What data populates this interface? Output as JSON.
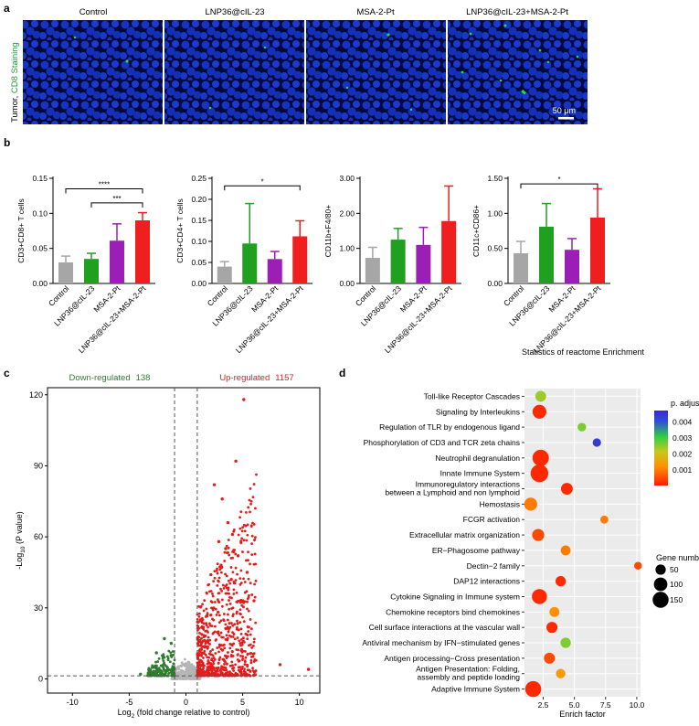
{
  "panels": {
    "a": "a",
    "b": "b",
    "c": "c",
    "d": "d"
  },
  "panel_a": {
    "row_label_prefix": "Tumor, ",
    "row_label_colored": "CD8 Staining",
    "headers": [
      "Control",
      "LNP36@cIL-23",
      "MSA-2-Pt",
      "LNP36@cIL-23+MSA-2-Pt"
    ],
    "scale_bar": "50 μm",
    "colors": {
      "nuclei": "#1433c8",
      "cd8": "#22dd44",
      "background": "#020a3a",
      "label_green": "#1a9a3a"
    }
  },
  "chart_data": [
    {
      "type": "bar",
      "ylabel": "CD3+CD8+ T cells",
      "categories": [
        "Control",
        "LNP36@cIL-23",
        "MSA-2-Pt",
        "LNP36@cIL-23+MSA-2-Pt"
      ],
      "values": [
        0.03,
        0.035,
        0.061,
        0.09
      ],
      "errors": [
        0.009,
        0.008,
        0.024,
        0.011
      ],
      "colors": [
        "#a6a6a6",
        "#20a020",
        "#9b1fb5",
        "#ef1f1f"
      ],
      "ylim": [
        0,
        0.15
      ],
      "yticks": [
        "0.00",
        "0.05",
        "0.10",
        "0.15"
      ],
      "tick_values": [
        0,
        0.05,
        0.1,
        0.15
      ],
      "significance": [
        {
          "from": 0,
          "to": 3,
          "label": "****",
          "y": 0.135
        },
        {
          "from": 1,
          "to": 3,
          "label": "***",
          "y": 0.115
        }
      ]
    },
    {
      "type": "bar",
      "ylabel": "CD3+CD4+ T cells",
      "categories": [
        "Control",
        "LNP36@cIL-23",
        "MSA-2-Pt",
        "LNP36@cIL-23+MSA-2-Pt"
      ],
      "values": [
        0.04,
        0.095,
        0.058,
        0.112
      ],
      "errors": [
        0.012,
        0.095,
        0.018,
        0.037
      ],
      "colors": [
        "#a6a6a6",
        "#20a020",
        "#9b1fb5",
        "#ef1f1f"
      ],
      "ylim": [
        0,
        0.25
      ],
      "yticks": [
        "0.00",
        "0.05",
        "0.10",
        "0.15",
        "0.20",
        "0.25"
      ],
      "tick_values": [
        0,
        0.05,
        0.1,
        0.15,
        0.2,
        0.25
      ],
      "significance": [
        {
          "from": 0,
          "to": 3,
          "label": "*",
          "y": 0.232
        }
      ]
    },
    {
      "type": "bar",
      "ylabel": "CD11b+F4/80+",
      "categories": [
        "Control",
        "LNP36@cIL-23",
        "MSA-2-Pt",
        "LNP36@cIL-23+MSA-2-Pt"
      ],
      "values": [
        0.73,
        1.25,
        1.1,
        1.78
      ],
      "errors": [
        0.3,
        0.32,
        0.5,
        1.0
      ],
      "colors": [
        "#a6a6a6",
        "#20a020",
        "#9b1fb5",
        "#ef1f1f"
      ],
      "ylim": [
        0,
        3.0
      ],
      "yticks": [
        "0.00",
        "1.00",
        "2.00",
        "3.00"
      ],
      "tick_values": [
        0,
        1,
        2,
        3
      ],
      "significance": []
    },
    {
      "type": "bar",
      "ylabel": "CD11c+CD86+",
      "categories": [
        "Control",
        "LNP36@cIL-23",
        "MSA-2-Pt",
        "LNP36@cIL-23+MSA-2-Pt"
      ],
      "values": [
        0.43,
        0.81,
        0.48,
        0.94
      ],
      "errors": [
        0.17,
        0.33,
        0.16,
        0.41
      ],
      "colors": [
        "#a6a6a6",
        "#20a020",
        "#9b1fb5",
        "#ef1f1f"
      ],
      "ylim": [
        0,
        1.5
      ],
      "yticks": [
        "0.00",
        "0.50",
        "1.00",
        "1.50"
      ],
      "tick_values": [
        0,
        0.5,
        1.0,
        1.5
      ],
      "significance": [
        {
          "from": 0,
          "to": 3,
          "label": "*",
          "y": 1.42
        }
      ]
    },
    {
      "type": "scatter",
      "title_down": "Down-regulated",
      "count_down": "138",
      "title_up": "Up-regulated",
      "count_up": "1157",
      "xlabel_main": "Log",
      "xlabel_sub": "2",
      "xlabel_rest": " (fold change relative  to control)",
      "ylabel_main": "-Log",
      "ylabel_sub": "10",
      "ylabel_rest": " (P value)",
      "xlim": [
        -12.2,
        11.8
      ],
      "ylim": [
        -6,
        123
      ],
      "xticks": [
        -10,
        -5,
        0,
        5,
        10
      ],
      "xtick_labels": [
        "-10",
        "-5",
        "0",
        "5",
        "10"
      ],
      "yticks": [
        0,
        30,
        60,
        90,
        120
      ],
      "ytick_labels": [
        "0",
        "30",
        "60",
        "90",
        "120"
      ],
      "fold_threshold": [
        -1,
        1
      ],
      "p_threshold": 1.3,
      "colors": {
        "down": "#2e7d2e",
        "up": "#e51b1b",
        "ns": "#b5b5b5"
      },
      "up_highlight": [
        {
          "x": 5.1,
          "y": 118
        },
        {
          "x": 4.4,
          "y": 92
        },
        {
          "x": 2.5,
          "y": 82
        },
        {
          "x": 3.2,
          "y": 76
        },
        {
          "x": 3.7,
          "y": 66
        },
        {
          "x": 4.1,
          "y": 61
        },
        {
          "x": 2.9,
          "y": 58
        },
        {
          "x": 3.5,
          "y": 55
        },
        {
          "x": 4.6,
          "y": 52
        },
        {
          "x": 3.1,
          "y": 48
        },
        {
          "x": 5.4,
          "y": 45
        },
        {
          "x": 2.2,
          "y": 44
        },
        {
          "x": 4.0,
          "y": 42
        },
        {
          "x": 6.0,
          "y": 33
        },
        {
          "x": 8.3,
          "y": 6
        },
        {
          "x": 10.8,
          "y": 4
        }
      ],
      "down_highlight": [
        {
          "x": -1.9,
          "y": 17
        },
        {
          "x": -1.3,
          "y": 15
        },
        {
          "x": -2.6,
          "y": 11
        },
        {
          "x": -4.0,
          "y": 2
        }
      ]
    },
    {
      "type": "scatter",
      "title": "Statistics of reactome Enrichment",
      "xlabel": "Enrich factor",
      "xlim": [
        1.0,
        10.3
      ],
      "xticks": [
        2.5,
        5.0,
        7.5,
        10.0
      ],
      "xtick_labels": [
        "2.5",
        "5.0",
        "7.5",
        "10.0"
      ],
      "terms": [
        {
          "label": [
            "Toll-like Receptor Cascades"
          ],
          "x": 2.3,
          "genes": 57,
          "p": 0.0024
        },
        {
          "label": [
            "Signaling by Interleukins"
          ],
          "x": 2.2,
          "genes": 105,
          "p": 0.0002
        },
        {
          "label": [
            "Regulation of TLR by endogenous ligand"
          ],
          "x": 5.6,
          "genes": 30,
          "p": 0.0026
        },
        {
          "label": [
            "Phosphorylation of CD3 and TCR zeta chains"
          ],
          "x": 6.8,
          "genes": 28,
          "p": 0.0044
        },
        {
          "label": [
            "Neutrophil degranulation"
          ],
          "x": 2.3,
          "genes": 160,
          "p": 0.0002
        },
        {
          "label": [
            "Innate Immune System"
          ],
          "x": 2.2,
          "genes": 190,
          "p": 0.0002
        },
        {
          "label": [
            "Immunoregulatory interactions",
            "between a Lymphoid and non lymphoid"
          ],
          "x": 4.4,
          "genes": 70,
          "p": 0.0002
        },
        {
          "label": [
            "Hemostasis"
          ],
          "x": 1.5,
          "genes": 90,
          "p": 0.001
        },
        {
          "label": [
            "FCGR activation"
          ],
          "x": 7.4,
          "genes": 25,
          "p": 0.001
        },
        {
          "label": [
            "Extracellular matrix organization"
          ],
          "x": 2.1,
          "genes": 75,
          "p": 0.0005
        },
        {
          "label": [
            "ER−Phagosome pathway"
          ],
          "x": 4.3,
          "genes": 45,
          "p": 0.001
        },
        {
          "label": [
            "Dectin−2 family"
          ],
          "x": 10.1,
          "genes": 22,
          "p": 0.0005
        },
        {
          "label": [
            "DAP12 interactions"
          ],
          "x": 3.9,
          "genes": 50,
          "p": 0.0002
        },
        {
          "label": [
            "Cytokine Signaling in Immune system"
          ],
          "x": 2.2,
          "genes": 130,
          "p": 0.0002
        },
        {
          "label": [
            "Chemokine receptors bind chemokines"
          ],
          "x": 3.4,
          "genes": 45,
          "p": 0.0012
        },
        {
          "label": [
            "Cell surface interactions at the vascular wall"
          ],
          "x": 3.2,
          "genes": 60,
          "p": 0.0002
        },
        {
          "label": [
            "Antiviral mechanism by IFN−stimulated genes"
          ],
          "x": 4.3,
          "genes": 50,
          "p": 0.0026
        },
        {
          "label": [
            "Antigen processing−Cross presentation"
          ],
          "x": 3.0,
          "genes": 60,
          "p": 0.0005
        },
        {
          "label": [
            "Antigen Presentation: Folding,",
            "assembly and peptide loading"
          ],
          "x": 3.9,
          "genes": 40,
          "p": 0.0014
        },
        {
          "label": [
            "Adaptive Immune System"
          ],
          "x": 1.7,
          "genes": 150,
          "p": 0.0002
        }
      ],
      "colorbar": {
        "title": "p. adjust",
        "ticks": [
          "0.004",
          "0.003",
          "0.002",
          "0.001"
        ],
        "tick_values": [
          0.004,
          0.003,
          0.002,
          0.001
        ],
        "range": [
          5e-05,
          0.0047
        ],
        "stops": [
          "#ff1a00",
          "#ff9000",
          "#c8c820",
          "#30d040",
          "#3050d8",
          "#3c28d0"
        ]
      },
      "size_legend": {
        "title": "Gene number",
        "values": [
          50,
          100,
          150
        ],
        "labels": [
          "50",
          "100",
          "150"
        ]
      }
    }
  ]
}
